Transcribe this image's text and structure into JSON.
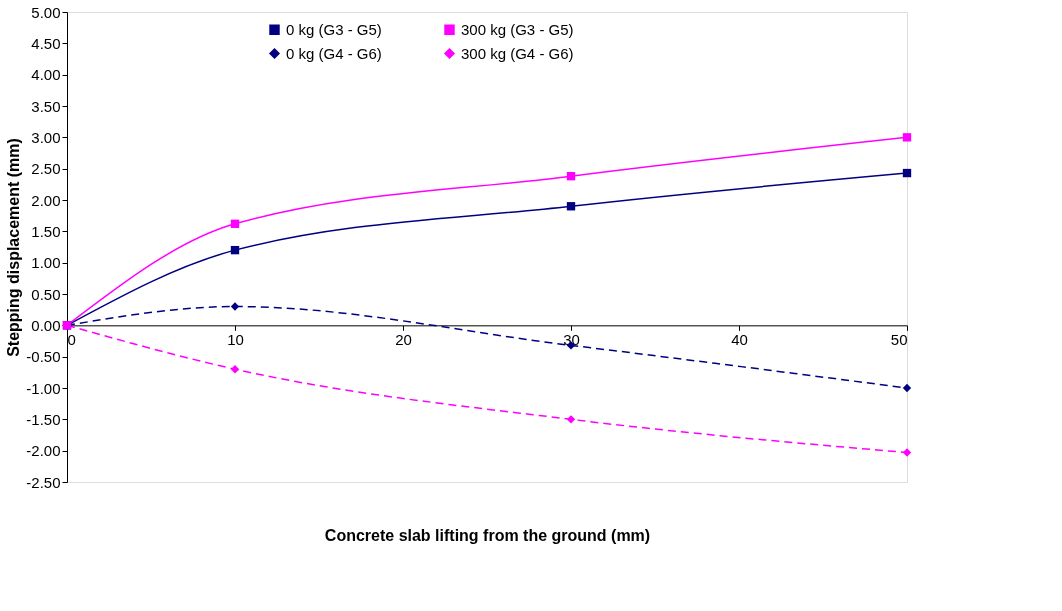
{
  "chart_data": {
    "type": "line",
    "xlabel": "Concrete slab lifting from the ground (mm)",
    "ylabel": "Stepping displacement (mm)",
    "x": [
      0,
      10,
      30,
      50
    ],
    "xlim": [
      0,
      50
    ],
    "xticks": [
      0,
      10,
      20,
      30,
      40,
      50
    ],
    "ylim": [
      -2.5,
      5.0
    ],
    "yticks": [
      {
        "value": -2.5,
        "label": "-2.50"
      },
      {
        "value": -2.0,
        "label": "-2.00"
      },
      {
        "value": -1.5,
        "label": "-1.50"
      },
      {
        "value": -1.0,
        "label": "-1.00"
      },
      {
        "value": -0.5,
        "label": "-0.50"
      },
      {
        "value": 0,
        "label": "0.00"
      },
      {
        "value": 0.5,
        "label": "0.50"
      },
      {
        "value": 1.0,
        "label": "1.00"
      },
      {
        "value": 1.5,
        "label": "1.50"
      },
      {
        "value": 2.0,
        "label": "2.00"
      },
      {
        "value": 2.5,
        "label": "2.50"
      },
      {
        "value": 3.0,
        "label": "3.00"
      },
      {
        "value": 3.5,
        "label": "3.50"
      },
      {
        "value": 4.0,
        "label": "4.00"
      },
      {
        "value": 4.5,
        "label": "4.50"
      },
      {
        "value": 5.0,
        "label": "5.00"
      }
    ],
    "grid": false,
    "legend": "top",
    "series": [
      {
        "name": "0 kg (G3 - G5)",
        "color": "#000080",
        "marker": "square",
        "line_style": "solid",
        "values": [
          0,
          1.2,
          1.9,
          2.43
        ]
      },
      {
        "name": "0 kg (G4 - G6)",
        "color": "#000080",
        "marker": "diamond",
        "line_style": "dashed",
        "values": [
          0,
          0.3,
          -0.32,
          -1.0
        ]
      },
      {
        "name": "300 kg (G3 - G5)",
        "color": "#ff00ff",
        "marker": "square",
        "line_style": "solid",
        "values": [
          0,
          1.62,
          2.38,
          3.0
        ]
      },
      {
        "name": "300 kg (G4 - G6)",
        "color": "#ff00ff",
        "marker": "diamond",
        "line_style": "dashed",
        "values": [
          0,
          -0.7,
          -1.5,
          -2.03
        ]
      }
    ]
  }
}
